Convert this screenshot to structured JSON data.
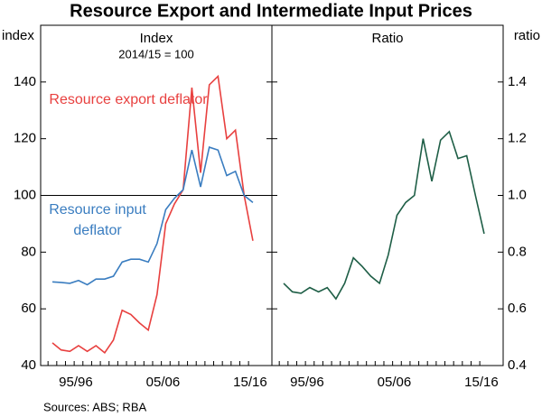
{
  "title": "Resource Export and Intermediate Input Prices",
  "source": "Sources: ABS; RBA",
  "chart_data": [
    {
      "type": "line",
      "title": "Index",
      "subtitle": "2014/15 = 100",
      "y_label": "index",
      "categories": [
        null,
        null,
        null,
        "95/96",
        null,
        null,
        null,
        null,
        null,
        null,
        null,
        null,
        null,
        "05/06",
        null,
        null,
        null,
        null,
        null,
        null,
        null,
        null,
        null,
        "15/16"
      ],
      "ylim": [
        40,
        160
      ],
      "yticks": [
        40,
        60,
        80,
        100,
        120,
        140
      ],
      "reference_line": 100,
      "series": [
        {
          "name": "Resource export deflator",
          "color": "#e8403f",
          "values": [
            48,
            45.5,
            45,
            47,
            45,
            47,
            44.5,
            49,
            59.5,
            58,
            55,
            52.5,
            65,
            90,
            97,
            102,
            138,
            108,
            139,
            142,
            120,
            123,
            100,
            84
          ]
        },
        {
          "name": "Resource input deflator",
          "color": "#3a7dc0",
          "values": [
            69.5,
            69.3,
            69,
            70,
            68.5,
            70.5,
            70.5,
            71.5,
            76.5,
            77.5,
            77.5,
            76.5,
            83,
            95,
            99,
            102,
            116,
            103,
            117,
            116,
            107,
            108.5,
            100,
            97.5
          ]
        }
      ]
    },
    {
      "type": "line",
      "title": "Ratio",
      "y_label": "ratio",
      "categories": [
        null,
        null,
        null,
        "95/96",
        null,
        null,
        null,
        null,
        null,
        null,
        null,
        null,
        null,
        "05/06",
        null,
        null,
        null,
        null,
        null,
        null,
        null,
        null,
        null,
        "15/16"
      ],
      "ylim": [
        0.4,
        1.6
      ],
      "yticks": [
        0.4,
        0.6,
        0.8,
        {
          "value": 1,
          "label": "1.0"
        },
        1.2,
        1.4
      ],
      "series": [
        {
          "color": "#1e5e46",
          "values": [
            0.69,
            0.66,
            0.655,
            0.675,
            0.66,
            0.675,
            0.635,
            0.69,
            0.78,
            0.75,
            0.715,
            0.69,
            0.79,
            0.93,
            0.975,
            1.0,
            1.2,
            1.05,
            1.195,
            1.225,
            1.13,
            1.14,
            1.0,
            0.865
          ]
        }
      ]
    }
  ]
}
